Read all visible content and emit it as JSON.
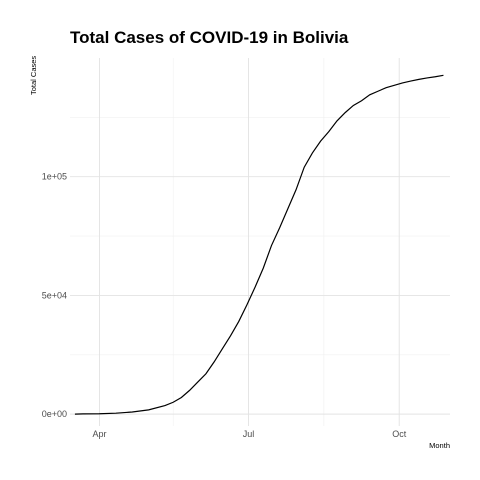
{
  "chart_data": {
    "type": "line",
    "title": "Total Cases of COVID-19 in Bolivia",
    "xlabel": "Month",
    "ylabel": "Total Cases",
    "x_ticks": [
      "Apr",
      "Jul",
      "Oct"
    ],
    "y_ticks": [
      "0e+00",
      "5e+04",
      "1e+05"
    ],
    "y_tick_values": [
      0,
      50000,
      100000
    ],
    "ylim": [
      -5000,
      150000
    ],
    "xlim_days": [
      -3,
      229
    ],
    "x_tick_days": [
      15,
      106,
      198
    ],
    "x_minor_days": [
      60,
      152
    ],
    "y_minor_values": [
      25000,
      75000,
      125000
    ],
    "series": [
      {
        "name": "Total Cases",
        "x_day_index": [
          0,
          5,
          15,
          25,
          35,
          45,
          55,
          60,
          65,
          70,
          75,
          80,
          85,
          90,
          95,
          100,
          105,
          110,
          115,
          120,
          125,
          130,
          135,
          140,
          145,
          150,
          155,
          160,
          165,
          170,
          175,
          180,
          185,
          190,
          195,
          200,
          205,
          210,
          215,
          220,
          225
        ],
        "values": [
          10,
          100,
          150,
          400,
          900,
          1800,
          3600,
          5000,
          7000,
          10000,
          13500,
          17000,
          22000,
          27500,
          33000,
          39000,
          46000,
          53500,
          61500,
          71000,
          78500,
          86500,
          94500,
          104000,
          110000,
          115000,
          119000,
          123500,
          127000,
          130000,
          132000,
          134500,
          136000,
          137500,
          138500,
          139500,
          140300,
          141000,
          141600,
          142100,
          142700
        ]
      }
    ]
  }
}
